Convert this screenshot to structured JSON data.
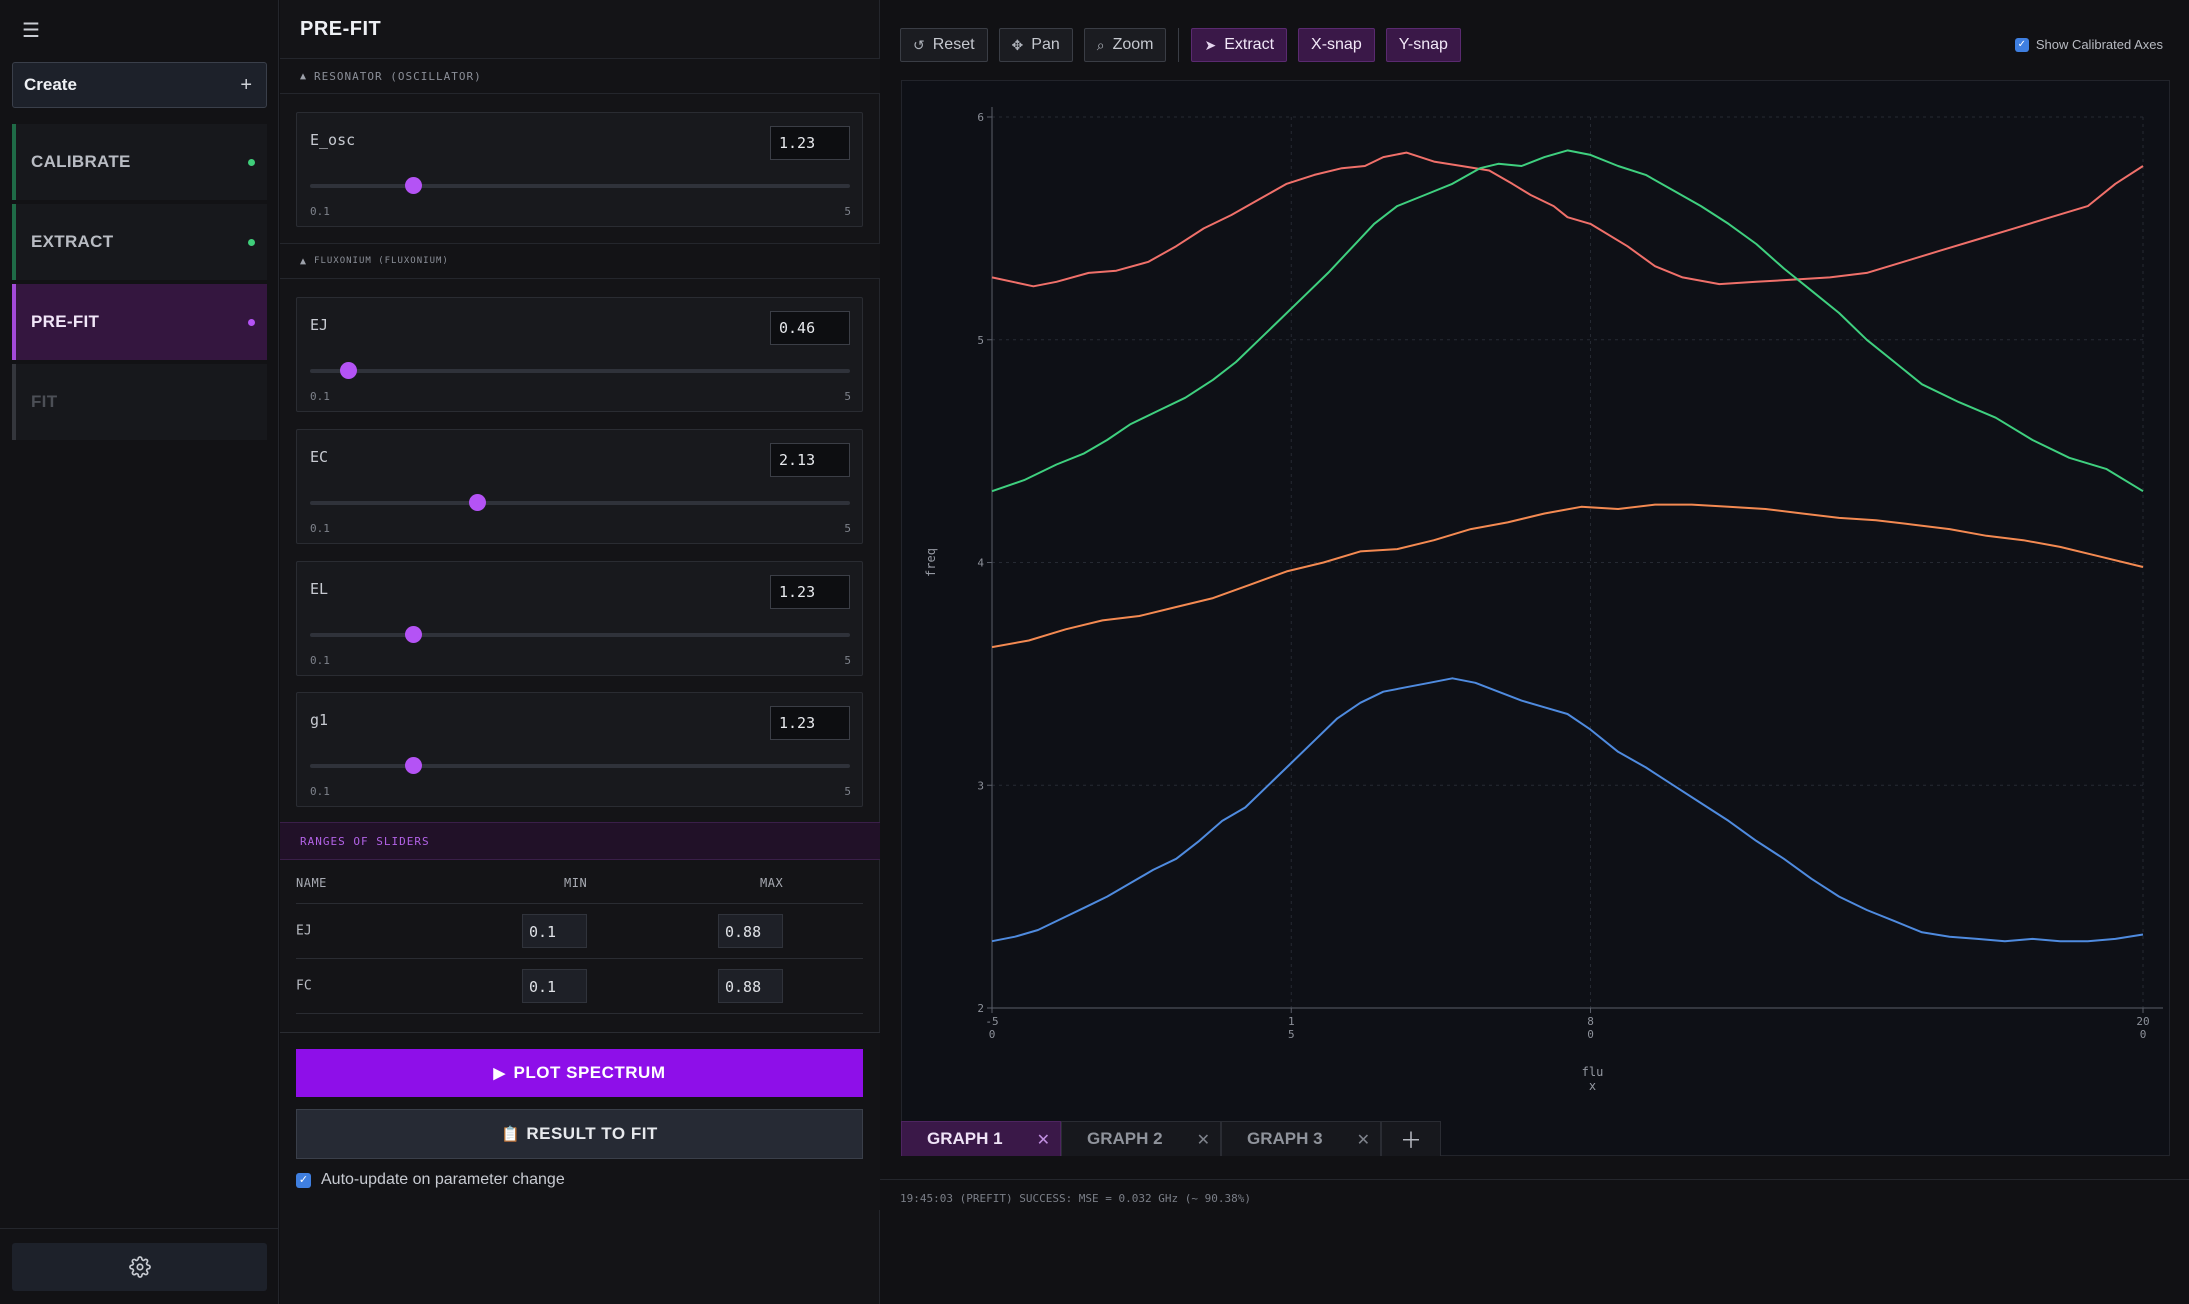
{
  "nav": {
    "menu_icon": "hamburger-icon",
    "create_label": "Create",
    "create_plus": "+",
    "steps": [
      {
        "label": "CALIBRATE",
        "state": "done",
        "dot_color": "#3fce7a"
      },
      {
        "label": "EXTRACT",
        "state": "done",
        "dot_color": "#3fce7a"
      },
      {
        "label": "PRE-FIT",
        "state": "active",
        "dot_color": "#b453f5"
      },
      {
        "label": "FIT",
        "state": "disabled"
      }
    ],
    "settings_icon": "gear-icon"
  },
  "params": {
    "title": "PRE-FIT",
    "sections": [
      {
        "label": "RESONATOR (OSCILLATOR)"
      },
      {
        "label": "FLUXONIUM (FLUXONIUM)"
      }
    ],
    "sliders": [
      {
        "name": "E_osc",
        "value": "1.23",
        "min": "0.1",
        "max": "5",
        "fraction": 0.19
      },
      {
        "name": "EJ",
        "value": "0.46",
        "min": "0.1",
        "max": "5",
        "fraction": 0.07
      },
      {
        "name": "EC",
        "value": "2.13",
        "min": "0.1",
        "max": "5",
        "fraction": 0.31
      },
      {
        "name": "EL",
        "value": "1.23",
        "min": "0.1",
        "max": "5",
        "fraction": 0.19
      },
      {
        "name": "g1",
        "value": "1.23",
        "min": "0.1",
        "max": "5",
        "fraction": 0.19
      }
    ],
    "ranges": {
      "title": "RANGES OF SLIDERS",
      "headers": [
        "NAME",
        "MIN",
        "MAX"
      ],
      "rows": [
        {
          "name": "EJ",
          "min": "0.1",
          "max": "0.88"
        },
        {
          "name": "FC",
          "min": "0.1",
          "max": "0.88"
        }
      ]
    },
    "plot_button": "PLOT SPECTRUM",
    "result_button": "RESULT TO FIT",
    "auto_update_label": "Auto-update on parameter change",
    "auto_update_checked": true
  },
  "toolbar": {
    "reset": "Reset",
    "pan": "Pan",
    "zoom": "Zoom",
    "extract": "Extract",
    "xsnap": "X-snap",
    "ysnap": "Y-snap",
    "show_calibrated_axes": "Show Calibrated Axes",
    "show_calibrated_axes_checked": true
  },
  "tabs": [
    {
      "label": "GRAPH 1",
      "active": true
    },
    {
      "label": "GRAPH 2",
      "active": false
    },
    {
      "label": "GRAPH 3",
      "active": false
    }
  ],
  "status": "19:45:03 (PREFIT) SUCCESS: MSE = 0.032 GHz (~ 90.38%)",
  "chart_data": {
    "type": "line",
    "xlabel": "flu\nx",
    "ylabel": "freq",
    "xlim": [
      -50,
      200
    ],
    "ylim": [
      2,
      6
    ],
    "xticks": [
      {
        "value": -50,
        "label": "-5\n0"
      },
      {
        "value": 15,
        "label": "1\n5"
      },
      {
        "value": 80,
        "label": "8\n0"
      },
      {
        "value": 200,
        "label": "20\n0"
      }
    ],
    "yticks": [
      2,
      3,
      4,
      5,
      6
    ],
    "grid": true,
    "series": [
      {
        "color": "#f0706a",
        "x": [
          -50,
          -41,
          -36,
          -29,
          -23,
          -16,
          -10,
          -4,
          2,
          8,
          14,
          20,
          26,
          31,
          35,
          40,
          46,
          52,
          58,
          63,
          67,
          72,
          75,
          80,
          88,
          94,
          100,
          108,
          116,
          124,
          132,
          140,
          148,
          156,
          164,
          172,
          180,
          188,
          194,
          200
        ],
        "y": [
          5.28,
          5.24,
          5.26,
          5.3,
          5.31,
          5.35,
          5.42,
          5.5,
          5.56,
          5.63,
          5.7,
          5.74,
          5.77,
          5.78,
          5.82,
          5.84,
          5.8,
          5.78,
          5.76,
          5.7,
          5.65,
          5.6,
          5.55,
          5.52,
          5.42,
          5.33,
          5.28,
          5.25,
          5.26,
          5.27,
          5.28,
          5.3,
          5.35,
          5.4,
          5.45,
          5.5,
          5.55,
          5.6,
          5.7,
          5.78
        ]
      },
      {
        "color": "#3fd07f",
        "x": [
          -50,
          -43,
          -36,
          -30,
          -25,
          -20,
          -14,
          -8,
          -2,
          3,
          8,
          13,
          18,
          23,
          28,
          33,
          38,
          44,
          50,
          56,
          60,
          65,
          70,
          75,
          80,
          86,
          92,
          98,
          104,
          110,
          116,
          122,
          128,
          134,
          140,
          146,
          152,
          160,
          168,
          176,
          184,
          192,
          200
        ],
        "y": [
          4.32,
          4.37,
          4.44,
          4.49,
          4.55,
          4.62,
          4.68,
          4.74,
          4.82,
          4.9,
          5.0,
          5.1,
          5.2,
          5.3,
          5.41,
          5.52,
          5.6,
          5.65,
          5.7,
          5.77,
          5.79,
          5.78,
          5.82,
          5.85,
          5.83,
          5.78,
          5.74,
          5.67,
          5.6,
          5.52,
          5.43,
          5.32,
          5.22,
          5.12,
          5.0,
          4.9,
          4.8,
          4.72,
          4.65,
          4.55,
          4.47,
          4.42,
          4.32
        ]
      },
      {
        "color": "#f48a52",
        "x": [
          -50,
          -42,
          -34,
          -26,
          -18,
          -10,
          -2,
          6,
          14,
          22,
          30,
          38,
          46,
          54,
          62,
          70,
          78,
          86,
          94,
          102,
          110,
          118,
          126,
          134,
          142,
          150,
          158,
          166,
          174,
          182,
          190,
          200
        ],
        "y": [
          3.62,
          3.65,
          3.7,
          3.74,
          3.76,
          3.8,
          3.84,
          3.9,
          3.96,
          4.0,
          4.05,
          4.06,
          4.1,
          4.15,
          4.18,
          4.22,
          4.25,
          4.24,
          4.26,
          4.26,
          4.25,
          4.24,
          4.22,
          4.2,
          4.19,
          4.17,
          4.15,
          4.12,
          4.1,
          4.07,
          4.03,
          3.98
        ]
      },
      {
        "color": "#4f8bdf",
        "x": [
          -50,
          -45,
          -40,
          -35,
          -30,
          -25,
          -20,
          -15,
          -10,
          -5,
          0,
          5,
          10,
          15,
          20,
          25,
          30,
          35,
          40,
          45,
          50,
          55,
          60,
          65,
          70,
          75,
          80,
          86,
          92,
          98,
          104,
          110,
          116,
          122,
          128,
          134,
          140,
          146,
          152,
          158,
          164,
          170,
          176,
          182,
          188,
          194,
          200
        ],
        "y": [
          2.3,
          2.32,
          2.35,
          2.4,
          2.45,
          2.5,
          2.56,
          2.62,
          2.67,
          2.75,
          2.84,
          2.9,
          3.0,
          3.1,
          3.2,
          3.3,
          3.37,
          3.42,
          3.44,
          3.46,
          3.48,
          3.46,
          3.42,
          3.38,
          3.35,
          3.32,
          3.25,
          3.15,
          3.08,
          3.0,
          2.92,
          2.84,
          2.75,
          2.67,
          2.58,
          2.5,
          2.44,
          2.39,
          2.34,
          2.32,
          2.31,
          2.3,
          2.31,
          2.3,
          2.3,
          2.31,
          2.33
        ]
      }
    ]
  }
}
